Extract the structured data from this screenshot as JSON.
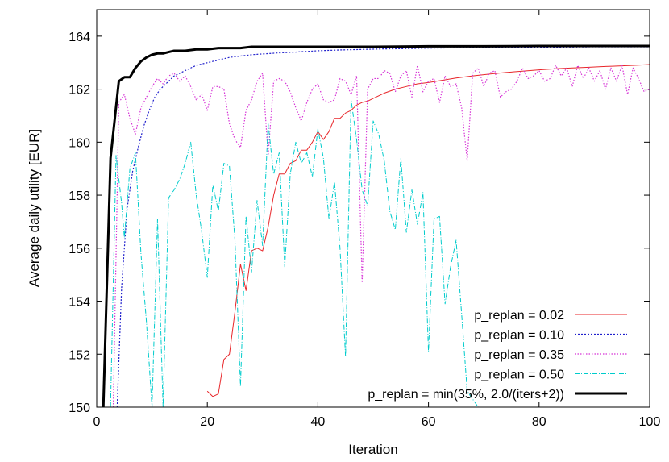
{
  "chart_data": {
    "type": "line",
    "title": "",
    "xlabel": "Iteration",
    "ylabel": "Average daily utility [EUR]",
    "xlim": [
      0,
      100
    ],
    "ylim": [
      150,
      165
    ],
    "xticks": [
      0,
      20,
      40,
      60,
      80,
      100
    ],
    "yticks": [
      150,
      152,
      154,
      156,
      158,
      160,
      162,
      164
    ],
    "grid": false,
    "legend_position": "bottom-right",
    "series": [
      {
        "name": "p_replan = 0.02",
        "color": "#e8262a",
        "dash": "solid",
        "width": 1,
        "x": [
          20,
          21,
          22,
          23,
          24,
          25,
          26,
          27,
          28,
          29,
          30,
          31,
          32,
          33,
          34,
          35,
          36,
          37,
          38,
          39,
          40,
          41,
          42,
          43,
          44,
          45,
          46,
          47,
          48,
          49,
          50,
          52,
          54,
          56,
          58,
          60,
          62,
          65,
          68,
          71,
          74,
          77,
          80,
          83,
          86,
          89,
          92,
          95,
          98,
          100
        ],
        "y": [
          150.6,
          150.4,
          150.5,
          151.8,
          152.0,
          153.6,
          155.4,
          154.4,
          155.9,
          156.0,
          155.9,
          156.8,
          158.0,
          158.8,
          158.8,
          159.2,
          159.3,
          159.7,
          159.7,
          160.0,
          160.4,
          160.1,
          160.4,
          160.9,
          160.9,
          161.1,
          161.2,
          161.4,
          161.5,
          161.55,
          161.65,
          161.85,
          162.0,
          162.1,
          162.2,
          162.25,
          162.32,
          162.42,
          162.5,
          162.57,
          162.63,
          162.68,
          162.73,
          162.77,
          162.8,
          162.83,
          162.86,
          162.88,
          162.91,
          162.93
        ]
      },
      {
        "name": "p_replan = 0.10",
        "color": "#1f1fcc",
        "dash": "2,2",
        "width": 1.2,
        "x": [
          3.7,
          4.5,
          5.5,
          6.5,
          7.5,
          8.5,
          9.5,
          10.5,
          11.5,
          12.5,
          14,
          16,
          18,
          20,
          22,
          24,
          26,
          28,
          30,
          33,
          36,
          40,
          44,
          48,
          52,
          56,
          60,
          65,
          70,
          75,
          80,
          85,
          90,
          95,
          100
        ],
        "y": [
          150.0,
          154.5,
          157.5,
          158.9,
          159.8,
          160.6,
          161.2,
          161.7,
          162.0,
          162.2,
          162.5,
          162.7,
          162.9,
          163.0,
          163.1,
          163.2,
          163.25,
          163.3,
          163.33,
          163.37,
          163.4,
          163.45,
          163.48,
          163.5,
          163.52,
          163.53,
          163.55,
          163.56,
          163.57,
          163.58,
          163.58,
          163.59,
          163.6,
          163.6,
          163.6
        ]
      },
      {
        "name": "p_replan = 0.35",
        "color": "#d633d6",
        "dash": "1.5,2",
        "width": 1.2,
        "x": [
          3,
          4,
          5,
          6,
          7,
          8,
          9,
          10,
          11,
          12,
          13,
          14,
          15,
          16,
          17,
          18,
          19,
          20,
          21,
          22,
          23,
          24,
          25,
          26,
          27,
          28,
          29,
          30,
          31,
          32,
          33,
          34,
          35,
          36,
          37,
          38,
          39,
          40,
          41,
          42,
          43,
          44,
          45,
          46,
          47,
          48,
          49,
          50,
          51,
          52,
          53,
          54,
          55,
          56,
          57,
          58,
          59,
          60,
          61,
          62,
          63,
          64,
          65,
          66,
          67,
          68,
          69,
          70,
          71,
          72,
          73,
          74,
          75,
          76,
          77,
          78,
          79,
          80,
          81,
          82,
          83,
          84,
          85,
          86,
          87,
          88,
          89,
          90,
          91,
          92,
          93,
          94,
          95,
          96,
          97,
          98,
          99,
          100
        ],
        "y": [
          150.0,
          161.5,
          161.8,
          160.9,
          160.3,
          161.3,
          161.7,
          162.1,
          162.4,
          162.2,
          162.5,
          162.6,
          162.3,
          162.5,
          162.1,
          161.6,
          161.8,
          161.2,
          162.1,
          162.1,
          162.0,
          160.7,
          160.1,
          159.8,
          161.2,
          161.6,
          162.3,
          162.6,
          159.5,
          162.3,
          162.4,
          162.3,
          161.9,
          161.3,
          160.8,
          161.5,
          162.0,
          162.2,
          161.6,
          161.5,
          161.6,
          162.4,
          162.3,
          161.8,
          162.5,
          154.7,
          162.0,
          162.4,
          162.4,
          162.7,
          162.6,
          161.9,
          162.5,
          162.7,
          161.7,
          162.9,
          161.9,
          162.3,
          162.4,
          161.5,
          162.5,
          162.1,
          162.2,
          161.3,
          159.3,
          162.6,
          162.8,
          162.1,
          162.6,
          162.7,
          161.7,
          161.9,
          162.0,
          162.3,
          162.8,
          162.4,
          162.5,
          162.7,
          162.3,
          162.4,
          162.9,
          162.5,
          162.8,
          162.1,
          162.9,
          162.4,
          162.8,
          162.3,
          162.7,
          162.0,
          162.8,
          162.3,
          162.9,
          161.8,
          162.8,
          162.4,
          161.9,
          162.0
        ]
      },
      {
        "name": "p_replan = 0.50",
        "color": "#00cccc",
        "dash": "6,2,1,2",
        "width": 1,
        "x": [
          2.5,
          3.5,
          4.5,
          5,
          6,
          7,
          8,
          9,
          10,
          11,
          12,
          13,
          14,
          15,
          16,
          17,
          18,
          19,
          20,
          21,
          22,
          23,
          24,
          25,
          26,
          27,
          28,
          29,
          30,
          31,
          32,
          33,
          34,
          35,
          36,
          37,
          38,
          39,
          40,
          41,
          42,
          43,
          44,
          45,
          46,
          47,
          48,
          49,
          50,
          51,
          52,
          53,
          54,
          55,
          56,
          57,
          58,
          59,
          60,
          61,
          62,
          63,
          64,
          65,
          66,
          67,
          68,
          69
        ],
        "y": [
          150.0,
          159.5,
          157.7,
          156.4,
          159.0,
          159.6,
          155.8,
          153.2,
          150.0,
          157.1,
          150.0,
          157.9,
          158.2,
          158.6,
          159.2,
          160.0,
          158.0,
          156.6,
          154.9,
          158.4,
          157.4,
          159.2,
          159.1,
          156.3,
          150.8,
          157.2,
          155.1,
          157.8,
          156.1,
          160.7,
          158.8,
          159.6,
          155.3,
          158.8,
          160.0,
          159.2,
          159.6,
          158.7,
          160.5,
          159.4,
          157.1,
          158.5,
          156.0,
          151.9,
          161.6,
          160.1,
          158.2,
          157.6,
          160.8,
          160.3,
          159.3,
          157.4,
          156.7,
          159.4,
          156.6,
          158.2,
          156.9,
          158.1,
          152.1,
          157.1,
          157.2,
          153.9,
          155.3,
          156.3,
          153.5,
          150.6,
          150.3,
          150.0
        ]
      },
      {
        "name": "p_replan = min(35%, 2.0/(iters+2))",
        "color": "#000000",
        "dash": "solid",
        "width": 3,
        "x": [
          1.2,
          2.5,
          4,
          5,
          6,
          7,
          8,
          9,
          10,
          11,
          12,
          13,
          14,
          16,
          18,
          20,
          22,
          24,
          26,
          28,
          30,
          35,
          40,
          50,
          60,
          70,
          80,
          90,
          100
        ],
        "y": [
          150.0,
          159.4,
          162.3,
          162.45,
          162.45,
          162.8,
          163.05,
          163.2,
          163.3,
          163.35,
          163.35,
          163.4,
          163.45,
          163.45,
          163.5,
          163.5,
          163.55,
          163.55,
          163.55,
          163.6,
          163.6,
          163.6,
          163.6,
          163.6,
          163.62,
          163.62,
          163.63,
          163.63,
          163.63
        ]
      }
    ]
  }
}
